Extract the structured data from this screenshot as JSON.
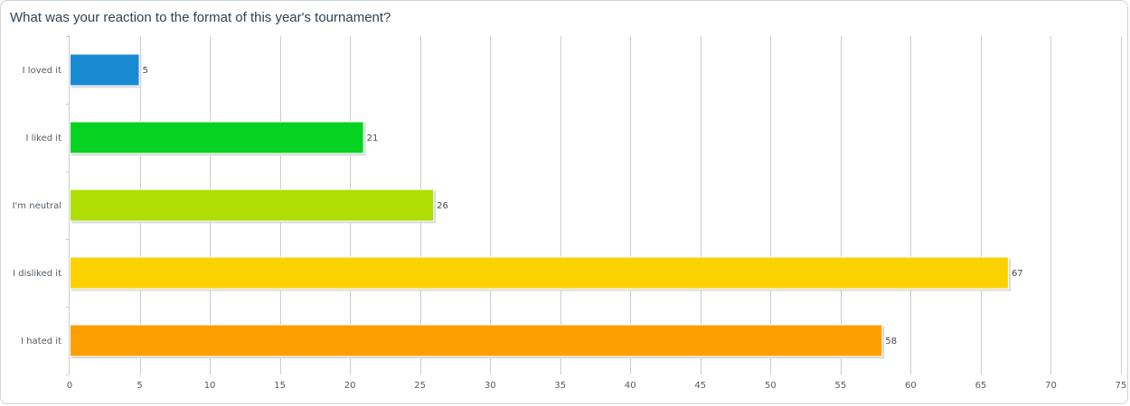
{
  "chart_data": {
    "type": "bar",
    "orientation": "horizontal",
    "title": "What was your reaction to the format of this year's tournament?",
    "categories": [
      "I loved it",
      "I liked it",
      "I'm neutral",
      "I disliked it",
      "I hated it"
    ],
    "values": [
      5,
      21,
      26,
      67,
      58
    ],
    "colors": [
      "#1a8bd2",
      "#06d321",
      "#afde04",
      "#fbd200",
      "#fe9f00"
    ],
    "xlim": [
      0,
      75
    ],
    "xticks": [
      0,
      5,
      10,
      15,
      20,
      25,
      30,
      35,
      40,
      45,
      50,
      55,
      60,
      65,
      70,
      75
    ],
    "grid": true,
    "xlabel": "",
    "ylabel": ""
  }
}
